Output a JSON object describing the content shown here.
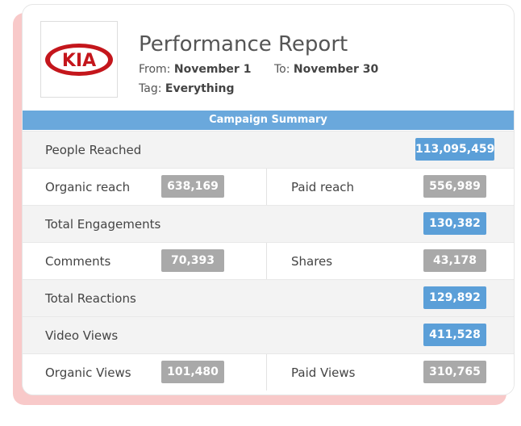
{
  "header": {
    "logo": "KIA",
    "title": "Performance Report",
    "from_label": "From:",
    "from": "November 1",
    "to_label": "To:",
    "to": "November 30",
    "tag_label": "Tag:",
    "tag": "Everything"
  },
  "summary": {
    "title": "Campaign Summary",
    "rows": [
      {
        "cells": [
          {
            "label": "People Reached",
            "value": "113,095,459",
            "color": "blue"
          }
        ]
      },
      {
        "cells": [
          {
            "label": "Organic reach",
            "value": "638,169",
            "color": "gray"
          },
          {
            "label": "Paid reach",
            "value": "556,989",
            "color": "gray"
          }
        ]
      },
      {
        "cells": [
          {
            "label": "Total Engagements",
            "value": "130,382",
            "color": "blue"
          }
        ]
      },
      {
        "cells": [
          {
            "label": "Comments",
            "value": "70,393",
            "color": "gray"
          },
          {
            "label": "Shares",
            "value": "43,178",
            "color": "gray"
          }
        ]
      },
      {
        "cells": [
          {
            "label": "Total Reactions",
            "value": "129,892",
            "color": "blue"
          }
        ]
      },
      {
        "cells": [
          {
            "label": "Video Views",
            "value": "411,528",
            "color": "blue"
          }
        ]
      },
      {
        "cells": [
          {
            "label": "Organic Views",
            "value": "101,480",
            "color": "gray"
          },
          {
            "label": "Paid Views",
            "value": "310,765",
            "color": "gray"
          }
        ]
      }
    ]
  }
}
